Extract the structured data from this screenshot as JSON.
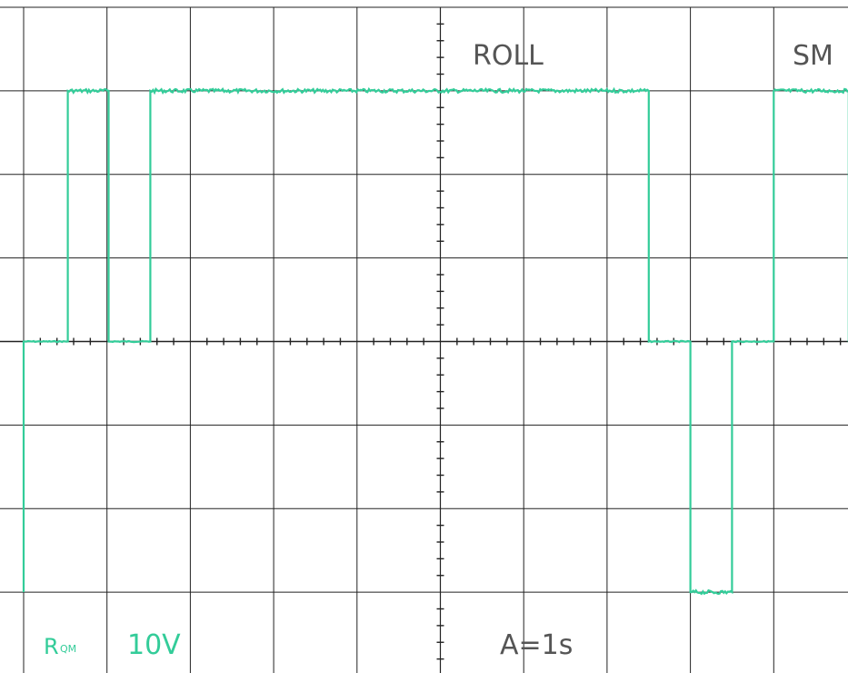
{
  "labels": {
    "mode": "ROLL",
    "mode_right": "SM",
    "channel": "R",
    "channel_sub": "QM",
    "volts_per_div": "10V",
    "time_per_div": "A=1s"
  },
  "colors": {
    "trace": "#33cc99",
    "grid": "#222222",
    "background": "#ffffff"
  },
  "chart_data": {
    "type": "line",
    "title": "",
    "xlabel": "",
    "ylabel": "",
    "x_unit": "s",
    "y_unit": "V",
    "xlim": [
      0,
      10
    ],
    "ylim": [
      -40,
      40
    ],
    "grid": true,
    "x_divisions": 10,
    "y_divisions": 8,
    "series": [
      {
        "x": [
          0.0,
          0.0,
          0.53,
          0.53,
          1.02,
          1.02,
          1.52,
          1.52,
          7.5,
          7.5,
          8.0,
          8.0,
          8.5,
          8.5,
          9.0,
          9.0,
          9.9,
          9.9,
          10.0
        ],
        "y": [
          -30,
          0,
          0,
          30,
          30,
          0,
          0,
          30,
          30,
          0,
          0,
          -30,
          -30,
          0,
          0,
          30,
          30,
          0,
          0
        ]
      }
    ]
  }
}
